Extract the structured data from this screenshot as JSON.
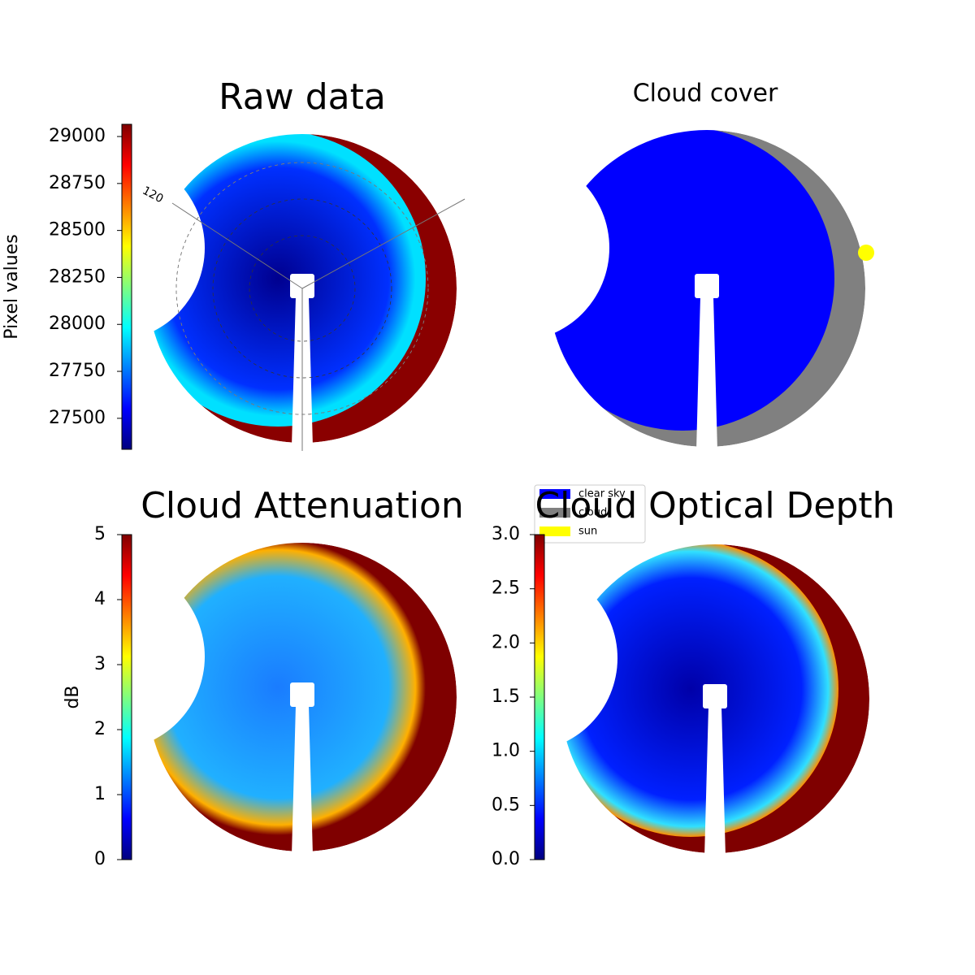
{
  "chart_data": [
    {
      "type": "image",
      "title": "Raw data",
      "annotation": "120",
      "colormap": "jet",
      "colorbar": {
        "label": "Pixel values",
        "ylim": [
          27335,
          29065
        ],
        "yticks": [
          27500,
          27750,
          28000,
          28250,
          28500,
          28750,
          29000
        ]
      }
    },
    {
      "type": "image",
      "title": "Cloud cover",
      "series": [
        {
          "name": "clear sky",
          "color": "#0000ff"
        },
        {
          "name": "cloud",
          "color": "#808080"
        },
        {
          "name": "sun",
          "color": "#ffff00"
        }
      ]
    },
    {
      "type": "image",
      "title": "Cloud Attenuation",
      "colormap": "jet",
      "colorbar": {
        "label": "dB",
        "ylim": [
          0,
          5
        ],
        "yticks": [
          0,
          1,
          2,
          3,
          4,
          5
        ]
      }
    },
    {
      "type": "image",
      "title": "Cloud Optical Depth",
      "colormap": "jet",
      "colorbar": {
        "ylim": [
          0,
          3
        ],
        "yticks": [
          {
            "value": 0,
            "label": "0.0"
          },
          0.5,
          {
            "value": 1,
            "label": "1.0"
          },
          1.5,
          {
            "value": 2,
            "label": "2.0"
          },
          2.5,
          {
            "value": 3,
            "label": "3.0"
          }
        ]
      }
    }
  ]
}
